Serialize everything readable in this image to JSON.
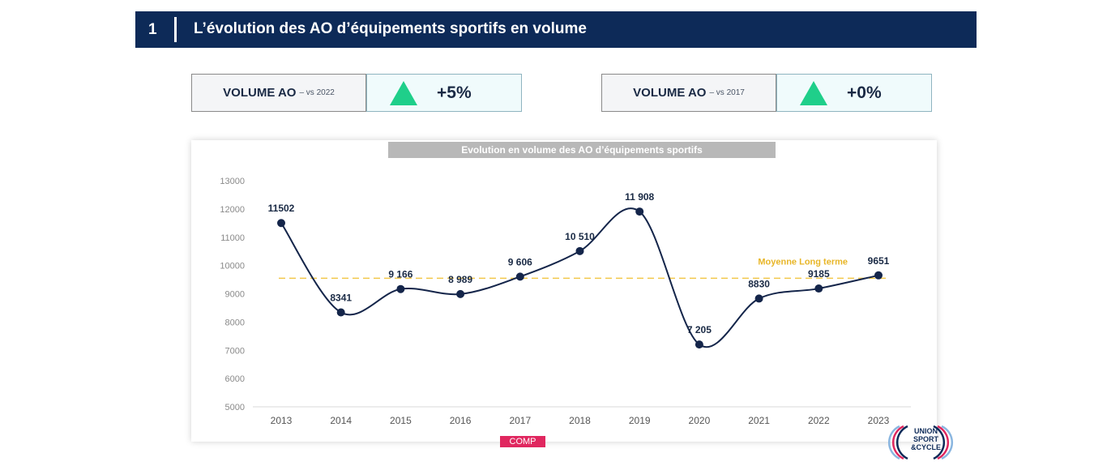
{
  "header": {
    "number": "1",
    "title": "L’évolution des AO d’équipements sportifs en volume"
  },
  "kpis": [
    {
      "label": "VOLUME AO",
      "sublabel": "– vs 2022",
      "value": "+5%"
    },
    {
      "label": "VOLUME AO",
      "sublabel": "– vs 2017",
      "value": "+0%"
    }
  ],
  "colors": {
    "header_bg": "#0d2a58",
    "line": "#14254a",
    "average_line": "#f2c84b",
    "up_arrow": "#1fcf8a",
    "tag": "#e0275f"
  },
  "tag": "COMP",
  "logo": {
    "line1": "UNION",
    "line2": "SPORT",
    "line3": "&CYCLE"
  },
  "chart_data": {
    "type": "line",
    "title": "Evolution en volume des AO d’équipements sportifs",
    "xlabel": "",
    "ylabel": "",
    "x": [
      "2013",
      "2014",
      "2015",
      "2016",
      "2017",
      "2018",
      "2019",
      "2020",
      "2021",
      "2022",
      "2023"
    ],
    "values": [
      11502,
      8341,
      9166,
      8989,
      9606,
      10510,
      11908,
      7205,
      8830,
      9185,
      9651
    ],
    "data_labels": [
      "11502",
      "8341",
      "9 166",
      "8 989",
      "9 606",
      "10 510",
      "11 908",
      "7 205",
      "8830",
      "9185",
      "9651"
    ],
    "y_ticks": [
      5000,
      6000,
      7000,
      8000,
      9000,
      10000,
      11000,
      12000,
      13000
    ],
    "y_tick_labels": [
      "5000",
      "6000",
      "7000",
      "8000",
      "9000",
      "10000",
      "11000",
      "12000",
      "13000"
    ],
    "ylim": [
      5000,
      13000
    ],
    "reference_line": {
      "label": "Moyenne Long terme",
      "value": 9550
    },
    "grid": false,
    "legend": "none"
  }
}
